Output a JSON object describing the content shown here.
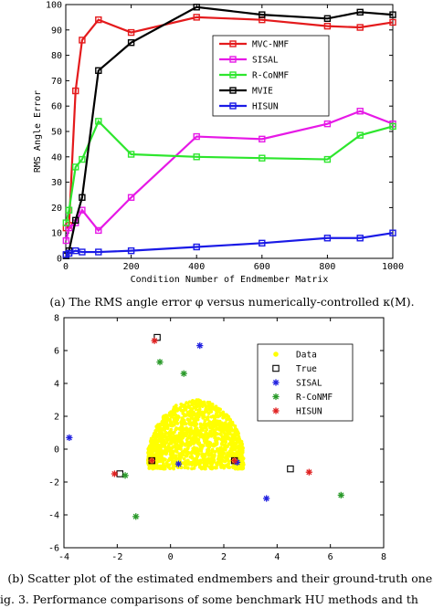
{
  "chart_data": [
    {
      "type": "line",
      "xlabel": "Condition Number of Endmember Matrix",
      "ylabel": "RMS Angle Error",
      "xlim": [
        0,
        1000
      ],
      "ylim": [
        0,
        100
      ],
      "xticks": [
        0,
        200,
        400,
        600,
        800,
        1000
      ],
      "yticks": [
        0,
        10,
        20,
        30,
        40,
        50,
        60,
        70,
        80,
        90,
        100
      ],
      "grid": false,
      "legend_position": "top-right",
      "caption": "(a) The RMS angle error φ versus numerically-controlled κ(M).",
      "series": [
        {
          "name": "MVC-NMF",
          "color": "#e41a1c",
          "x": [
            1,
            10,
            30,
            50,
            100,
            200,
            400,
            600,
            800,
            900,
            1000
          ],
          "y": [
            12,
            13,
            66,
            86,
            94,
            89,
            95,
            94,
            91.5,
            91,
            93
          ]
        },
        {
          "name": "SISAL",
          "color": "#e619e6",
          "x": [
            1,
            10,
            30,
            50,
            100,
            200,
            400,
            600,
            800,
            900,
            1000
          ],
          "y": [
            7,
            12,
            14,
            19,
            11,
            24,
            48,
            47,
            53,
            58,
            53
          ]
        },
        {
          "name": "R-CoNMF",
          "color": "#2de62d",
          "x": [
            1,
            10,
            30,
            50,
            100,
            200,
            400,
            600,
            800,
            900,
            1000
          ],
          "y": [
            14,
            19,
            36,
            39,
            54,
            41,
            40,
            39.5,
            39,
            48.5,
            52
          ]
        },
        {
          "name": "MVIE",
          "color": "#000000",
          "x": [
            1,
            10,
            30,
            50,
            100,
            200,
            400,
            600,
            800,
            900,
            1000
          ],
          "y": [
            1,
            3,
            15,
            24,
            74,
            85,
            99,
            96,
            94.5,
            97,
            96
          ]
        },
        {
          "name": "HISUN",
          "color": "#1a1ae6",
          "x": [
            1,
            10,
            30,
            50,
            100,
            200,
            400,
            600,
            800,
            900,
            1000
          ],
          "y": [
            1.5,
            2,
            3,
            2.5,
            2.5,
            3,
            4.5,
            6,
            8,
            8,
            10
          ]
        }
      ]
    },
    {
      "type": "scatter",
      "xlim": [
        -4,
        8
      ],
      "ylim": [
        -6,
        8
      ],
      "xticks": [
        -4,
        -2,
        0,
        2,
        4,
        6,
        8
      ],
      "yticks": [
        -6,
        -4,
        -2,
        0,
        2,
        4,
        6,
        8
      ],
      "grid": false,
      "legend_position": "top-right",
      "caption": "(b) Scatter plot of the estimated endmembers and their ground-truth ones.",
      "series": [
        {
          "name": "Data",
          "color": "#ffff00",
          "marker": "dot",
          "x": [
            0,
            1,
            2
          ],
          "y": [
            0,
            1,
            2
          ],
          "cloud": true
        },
        {
          "name": "True",
          "color": "#000000",
          "marker": "square",
          "x": [
            -0.5,
            -1.9,
            -0.7,
            2.4,
            4.5
          ],
          "y": [
            6.8,
            -1.5,
            -0.7,
            -0.7,
            -1.2
          ]
        },
        {
          "name": "SISAL",
          "color": "#2020e0",
          "marker": "star",
          "x": [
            -3.8,
            1.1,
            0.3,
            2.5,
            3.6
          ],
          "y": [
            0.7,
            6.3,
            -0.9,
            -0.8,
            -3.0
          ]
        },
        {
          "name": "R-CoNMF",
          "color": "#2a9a2a",
          "marker": "star",
          "x": [
            -0.4,
            0.5,
            -1.3,
            -1.7,
            6.4
          ],
          "y": [
            5.3,
            4.6,
            -4.1,
            -1.6,
            -2.8
          ]
        },
        {
          "name": "HISUN",
          "color": "#e02020",
          "marker": "star",
          "x": [
            -0.6,
            -2.1,
            -0.7,
            2.4,
            5.2
          ],
          "y": [
            6.6,
            -1.5,
            -0.7,
            -0.7,
            -1.4
          ]
        }
      ]
    }
  ],
  "figure_caption": "ig. 3.   Performance comparisons of some benchmark HU methods and th"
}
